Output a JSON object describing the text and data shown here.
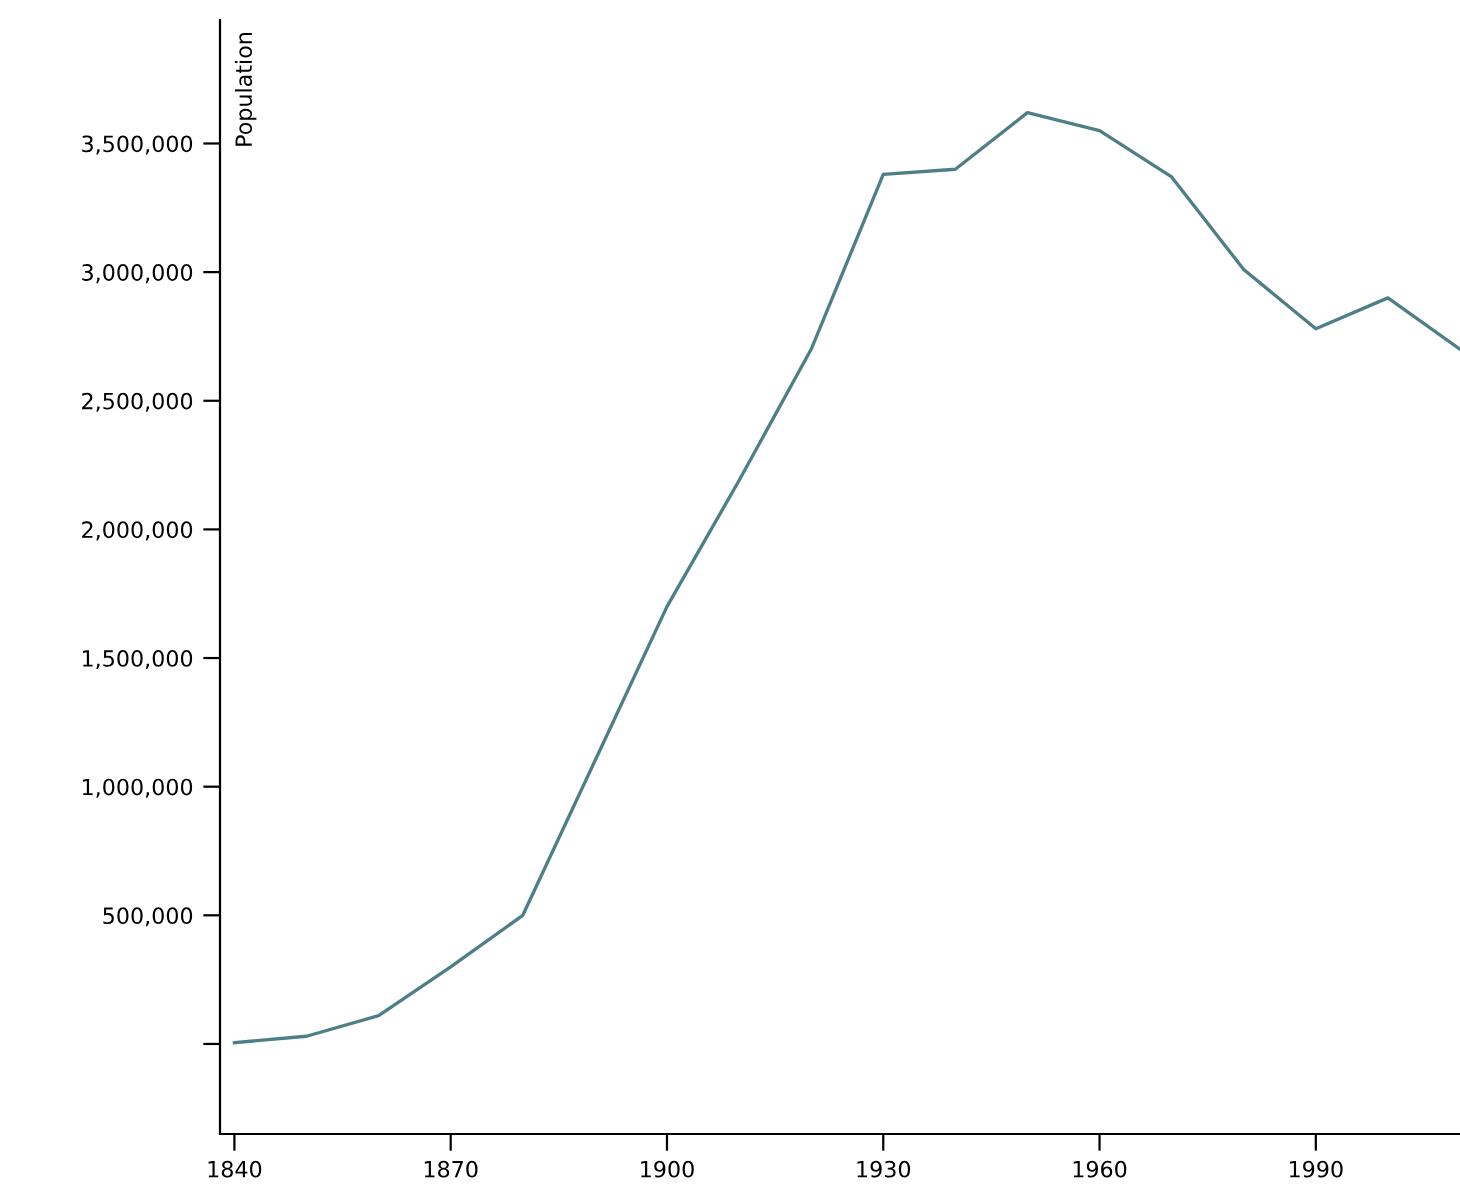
{
  "chart_data": {
    "type": "line",
    "ylabel": "Population",
    "x": [
      1840,
      1850,
      1860,
      1870,
      1880,
      1890,
      1900,
      1910,
      1920,
      1930,
      1940,
      1950,
      1960,
      1970,
      1980,
      1990,
      2000,
      2010
    ],
    "series": [
      {
        "color": "#4e7f86",
        "values": [
          5000,
          30000,
          110000,
          300000,
          500000,
          1100000,
          1700000,
          2190000,
          2700000,
          3380000,
          3400000,
          3620000,
          3550000,
          3370000,
          3010000,
          2780000,
          2900000,
          2700000
        ]
      }
    ],
    "xlim": [
      1838,
      2010
    ],
    "xticks": [
      1840,
      1870,
      1900,
      1930,
      1960,
      1990
    ],
    "ylim": [
      -350000,
      3980000
    ],
    "yticks": [
      {
        "value": 0,
        "label": null
      },
      {
        "value": 500000,
        "label": "500,000"
      },
      {
        "value": 1000000,
        "label": "1,000,000"
      },
      {
        "value": 1500000,
        "label": "1,500,000"
      },
      {
        "value": 2000000,
        "label": "2,000,000"
      },
      {
        "value": 2500000,
        "label": "2,500,000"
      },
      {
        "value": 3000000,
        "label": "3,000,000"
      },
      {
        "value": 3500000,
        "label": "3,500,000"
      }
    ],
    "grid": false,
    "legend": false,
    "marker": "none",
    "line_style": "solid"
  }
}
